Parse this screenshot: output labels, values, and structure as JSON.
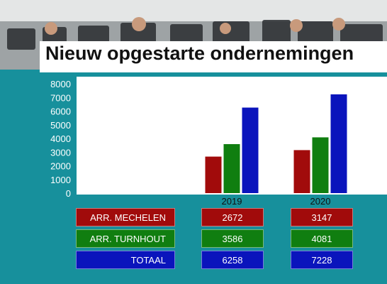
{
  "title": "Nieuw opgestarte ondernemingen",
  "colors": {
    "mechelen": "#a10b0b",
    "turnhout": "#107e10",
    "totaal": "#0a14bc",
    "background": "#17909c"
  },
  "chart_data": {
    "type": "bar",
    "title": "Nieuw opgestarte ondernemingen",
    "categories": [
      "2019",
      "2020"
    ],
    "series": [
      {
        "name": "ARR. MECHELEN",
        "values": [
          2672,
          3147
        ],
        "color": "#a10b0b"
      },
      {
        "name": "ARR. TURNHOUT",
        "values": [
          3586,
          4081
        ],
        "color": "#107e10"
      },
      {
        "name": "TOTAAL",
        "values": [
          6258,
          7228
        ],
        "color": "#0a14bc"
      }
    ],
    "yticks": [
      "0",
      "1000",
      "2000",
      "3000",
      "4000",
      "5000",
      "6000",
      "7000",
      "8000"
    ],
    "ylim": [
      0,
      8000
    ],
    "grid": false,
    "legend": "table-below"
  },
  "table": {
    "rows": [
      {
        "label": "ARR. MECHELEN",
        "values": [
          "2672",
          "3147"
        ]
      },
      {
        "label": "ARR. TURNHOUT",
        "values": [
          "3586",
          "4081"
        ]
      },
      {
        "label": "TOTAAL",
        "values": [
          "6258",
          "7228"
        ]
      }
    ]
  }
}
